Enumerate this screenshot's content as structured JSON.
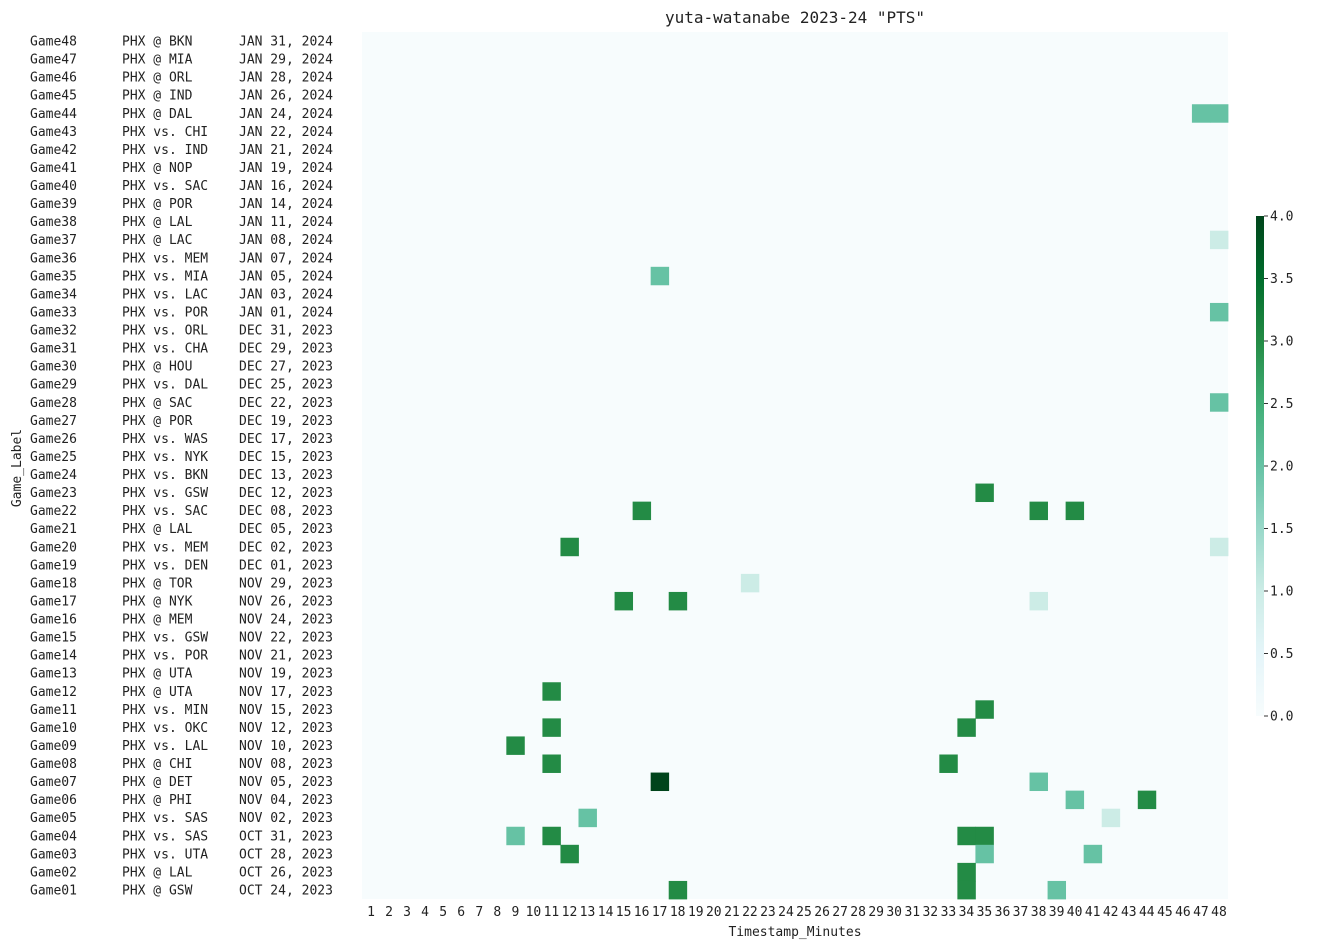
{
  "chart_data": {
    "type": "heatmap",
    "title": "yuta-watanabe 2023-24 \"PTS\"",
    "xlabel": "Timestamp_Minutes",
    "ylabel": "Game_Label",
    "x": [
      "1",
      "2",
      "3",
      "4",
      "5",
      "6",
      "7",
      "8",
      "9",
      "10",
      "11",
      "12",
      "13",
      "14",
      "15",
      "16",
      "17",
      "18",
      "19",
      "20",
      "21",
      "22",
      "23",
      "24",
      "25",
      "26",
      "27",
      "28",
      "29",
      "30",
      "31",
      "32",
      "33",
      "34",
      "35",
      "36",
      "37",
      "38",
      "39",
      "40",
      "41",
      "42",
      "43",
      "44",
      "45",
      "46",
      "47",
      "48"
    ],
    "games": [
      {
        "label": "Game48",
        "matchup": "PHX @ BKN",
        "date": "JAN 31, 2024"
      },
      {
        "label": "Game47",
        "matchup": "PHX @ MIA",
        "date": "JAN 29, 2024"
      },
      {
        "label": "Game46",
        "matchup": "PHX @ ORL",
        "date": "JAN 28, 2024"
      },
      {
        "label": "Game45",
        "matchup": "PHX @ IND",
        "date": "JAN 26, 2024"
      },
      {
        "label": "Game44",
        "matchup": "PHX @ DAL",
        "date": "JAN 24, 2024"
      },
      {
        "label": "Game43",
        "matchup": "PHX vs. CHI",
        "date": "JAN 22, 2024"
      },
      {
        "label": "Game42",
        "matchup": "PHX vs. IND",
        "date": "JAN 21, 2024"
      },
      {
        "label": "Game41",
        "matchup": "PHX @ NOP",
        "date": "JAN 19, 2024"
      },
      {
        "label": "Game40",
        "matchup": "PHX vs. SAC",
        "date": "JAN 16, 2024"
      },
      {
        "label": "Game39",
        "matchup": "PHX @ POR",
        "date": "JAN 14, 2024"
      },
      {
        "label": "Game38",
        "matchup": "PHX @ LAL",
        "date": "JAN 11, 2024"
      },
      {
        "label": "Game37",
        "matchup": "PHX @ LAC",
        "date": "JAN 08, 2024"
      },
      {
        "label": "Game36",
        "matchup": "PHX vs. MEM",
        "date": "JAN 07, 2024"
      },
      {
        "label": "Game35",
        "matchup": "PHX vs. MIA",
        "date": "JAN 05, 2024"
      },
      {
        "label": "Game34",
        "matchup": "PHX vs. LAC",
        "date": "JAN 03, 2024"
      },
      {
        "label": "Game33",
        "matchup": "PHX vs. POR",
        "date": "JAN 01, 2024"
      },
      {
        "label": "Game32",
        "matchup": "PHX vs. ORL",
        "date": "DEC 31, 2023"
      },
      {
        "label": "Game31",
        "matchup": "PHX vs. CHA",
        "date": "DEC 29, 2023"
      },
      {
        "label": "Game30",
        "matchup": "PHX @ HOU",
        "date": "DEC 27, 2023"
      },
      {
        "label": "Game29",
        "matchup": "PHX vs. DAL",
        "date": "DEC 25, 2023"
      },
      {
        "label": "Game28",
        "matchup": "PHX @ SAC",
        "date": "DEC 22, 2023"
      },
      {
        "label": "Game27",
        "matchup": "PHX @ POR",
        "date": "DEC 19, 2023"
      },
      {
        "label": "Game26",
        "matchup": "PHX vs. WAS",
        "date": "DEC 17, 2023"
      },
      {
        "label": "Game25",
        "matchup": "PHX vs. NYK",
        "date": "DEC 15, 2023"
      },
      {
        "label": "Game24",
        "matchup": "PHX vs. BKN",
        "date": "DEC 13, 2023"
      },
      {
        "label": "Game23",
        "matchup": "PHX vs. GSW",
        "date": "DEC 12, 2023"
      },
      {
        "label": "Game22",
        "matchup": "PHX vs. SAC",
        "date": "DEC 08, 2023"
      },
      {
        "label": "Game21",
        "matchup": "PHX @ LAL",
        "date": "DEC 05, 2023"
      },
      {
        "label": "Game20",
        "matchup": "PHX vs. MEM",
        "date": "DEC 02, 2023"
      },
      {
        "label": "Game19",
        "matchup": "PHX vs. DEN",
        "date": "DEC 01, 2023"
      },
      {
        "label": "Game18",
        "matchup": "PHX @ TOR",
        "date": "NOV 29, 2023"
      },
      {
        "label": "Game17",
        "matchup": "PHX @ NYK",
        "date": "NOV 26, 2023"
      },
      {
        "label": "Game16",
        "matchup": "PHX @ MEM",
        "date": "NOV 24, 2023"
      },
      {
        "label": "Game15",
        "matchup": "PHX vs. GSW",
        "date": "NOV 22, 2023"
      },
      {
        "label": "Game14",
        "matchup": "PHX vs. POR",
        "date": "NOV 21, 2023"
      },
      {
        "label": "Game13",
        "matchup": "PHX @ UTA",
        "date": "NOV 19, 2023"
      },
      {
        "label": "Game12",
        "matchup": "PHX @ UTA",
        "date": "NOV 17, 2023"
      },
      {
        "label": "Game11",
        "matchup": "PHX vs. MIN",
        "date": "NOV 15, 2023"
      },
      {
        "label": "Game10",
        "matchup": "PHX vs. OKC",
        "date": "NOV 12, 2023"
      },
      {
        "label": "Game09",
        "matchup": "PHX vs. LAL",
        "date": "NOV 10, 2023"
      },
      {
        "label": "Game08",
        "matchup": "PHX @ CHI",
        "date": "NOV 08, 2023"
      },
      {
        "label": "Game07",
        "matchup": "PHX @ DET",
        "date": "NOV 05, 2023"
      },
      {
        "label": "Game06",
        "matchup": "PHX @ PHI",
        "date": "NOV 04, 2023"
      },
      {
        "label": "Game05",
        "matchup": "PHX vs. SAS",
        "date": "NOV 02, 2023"
      },
      {
        "label": "Game04",
        "matchup": "PHX vs. SAS",
        "date": "OCT 31, 2023"
      },
      {
        "label": "Game03",
        "matchup": "PHX vs. UTA",
        "date": "OCT 28, 2023"
      },
      {
        "label": "Game02",
        "matchup": "PHX @ LAL",
        "date": "OCT 26, 2023"
      },
      {
        "label": "Game01",
        "matchup": "PHX @ GSW",
        "date": "OCT 24, 2023"
      }
    ],
    "cells": [
      {
        "game": "Game44",
        "minute": 47,
        "value": 2
      },
      {
        "game": "Game44",
        "minute": 48,
        "value": 2
      },
      {
        "game": "Game37",
        "minute": 48,
        "value": 1
      },
      {
        "game": "Game35",
        "minute": 17,
        "value": 2
      },
      {
        "game": "Game33",
        "minute": 48,
        "value": 2
      },
      {
        "game": "Game28",
        "minute": 48,
        "value": 2
      },
      {
        "game": "Game23",
        "minute": 35,
        "value": 3
      },
      {
        "game": "Game22",
        "minute": 16,
        "value": 3
      },
      {
        "game": "Game22",
        "minute": 38,
        "value": 3
      },
      {
        "game": "Game22",
        "minute": 40,
        "value": 3
      },
      {
        "game": "Game20",
        "minute": 12,
        "value": 3
      },
      {
        "game": "Game20",
        "minute": 48,
        "value": 1
      },
      {
        "game": "Game18",
        "minute": 22,
        "value": 1
      },
      {
        "game": "Game17",
        "minute": 15,
        "value": 3
      },
      {
        "game": "Game17",
        "minute": 18,
        "value": 3
      },
      {
        "game": "Game17",
        "minute": 38,
        "value": 1
      },
      {
        "game": "Game12",
        "minute": 11,
        "value": 3
      },
      {
        "game": "Game11",
        "minute": 35,
        "value": 3
      },
      {
        "game": "Game10",
        "minute": 11,
        "value": 3
      },
      {
        "game": "Game10",
        "minute": 34,
        "value": 3
      },
      {
        "game": "Game09",
        "minute": 9,
        "value": 3
      },
      {
        "game": "Game08",
        "minute": 11,
        "value": 3
      },
      {
        "game": "Game08",
        "minute": 33,
        "value": 3
      },
      {
        "game": "Game07",
        "minute": 17,
        "value": 4
      },
      {
        "game": "Game07",
        "minute": 38,
        "value": 2
      },
      {
        "game": "Game06",
        "minute": 40,
        "value": 2
      },
      {
        "game": "Game06",
        "minute": 44,
        "value": 3
      },
      {
        "game": "Game05",
        "minute": 13,
        "value": 2
      },
      {
        "game": "Game05",
        "minute": 42,
        "value": 1
      },
      {
        "game": "Game04",
        "minute": 9,
        "value": 2
      },
      {
        "game": "Game04",
        "minute": 11,
        "value": 3
      },
      {
        "game": "Game04",
        "minute": 34,
        "value": 3
      },
      {
        "game": "Game04",
        "minute": 35,
        "value": 3
      },
      {
        "game": "Game03",
        "minute": 12,
        "value": 3
      },
      {
        "game": "Game03",
        "minute": 35,
        "value": 2
      },
      {
        "game": "Game03",
        "minute": 41,
        "value": 2
      },
      {
        "game": "Game02",
        "minute": 34,
        "value": 3
      },
      {
        "game": "Game01",
        "minute": 18,
        "value": 3
      },
      {
        "game": "Game01",
        "minute": 34,
        "value": 3
      },
      {
        "game": "Game01",
        "minute": 39,
        "value": 2
      }
    ],
    "vmin": 0,
    "vmax": 4,
    "colorbar_ticks": [
      "0.0",
      "0.5",
      "1.0",
      "1.5",
      "2.0",
      "2.5",
      "3.0",
      "3.5",
      "4.0"
    ],
    "colormap": "BuGn",
    "colorbar_stops": [
      "#f7fcfd",
      "#e5f5f9",
      "#ccece6",
      "#99d8c9",
      "#66c2a4",
      "#41ae76",
      "#238b45",
      "#006d2c",
      "#00441b"
    ],
    "grid": false
  }
}
